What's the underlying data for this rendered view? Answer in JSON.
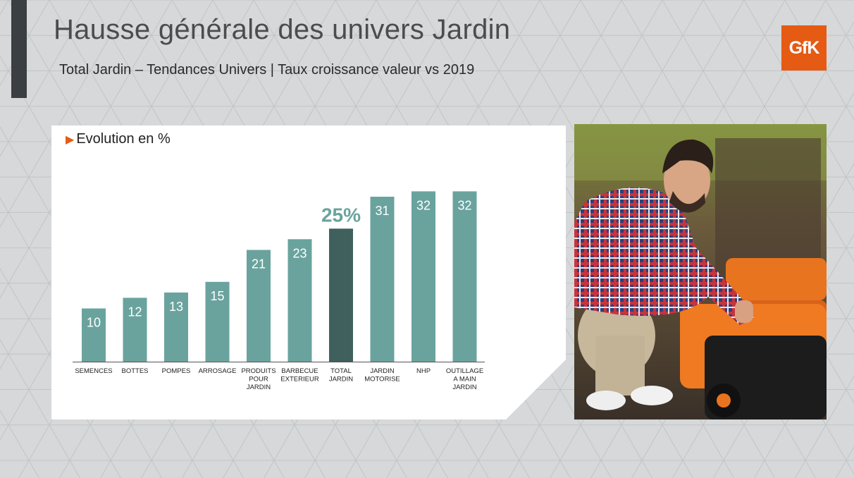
{
  "header": {
    "title": "Hausse générale des univers Jardin",
    "subtitle": "Total Jardin – Tendances Univers | Taux croissance valeur vs 2019"
  },
  "brand": {
    "logo_text": "GfK",
    "color": "#e55b13"
  },
  "colors": {
    "bar": "#6aa39e",
    "bar_highlight": "#3f605d",
    "highlight_label": "#6aa39e",
    "background": "#d6d8d9",
    "accent_bar": "#3b3f41"
  },
  "photo": {
    "description_icon": "man-inspecting-lawnmower-photo"
  },
  "chart_data": {
    "type": "bar",
    "title": "Evolution en %",
    "categories": [
      [
        "SEMENCES"
      ],
      [
        "BOTTES"
      ],
      [
        "POMPES"
      ],
      [
        "ARROSAGE"
      ],
      [
        "PRODUITS",
        "POUR",
        "JARDIN"
      ],
      [
        "BARBECUE",
        "EXTERIEUR"
      ],
      [
        "TOTAL",
        "JARDIN"
      ],
      [
        "JARDIN",
        "MOTORISE"
      ],
      [
        "NHP"
      ],
      [
        "OUTILLAGE",
        "A MAIN",
        "JARDIN"
      ]
    ],
    "values": [
      10,
      12,
      13,
      15,
      21,
      23,
      25,
      31,
      32,
      32
    ],
    "value_labels": [
      "10",
      "12",
      "13",
      "15",
      "21",
      "23",
      "25%",
      "31",
      "32",
      "32"
    ],
    "highlight_index": 6,
    "ylim": [
      0,
      35
    ],
    "grid": false,
    "legend": "none"
  }
}
